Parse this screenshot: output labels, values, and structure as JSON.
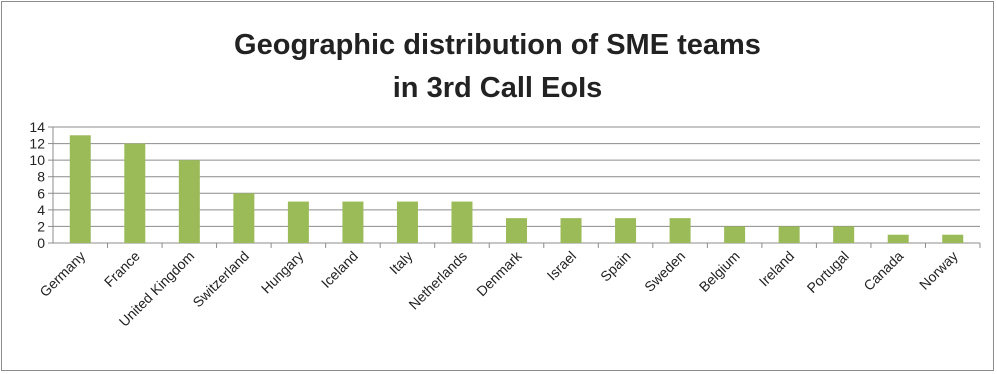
{
  "chart_data": {
    "type": "bar",
    "title": [
      "Geographic distribution of SME teams",
      "in 3rd Call EoIs"
    ],
    "xlabel": "",
    "ylabel": "",
    "categories": [
      "Germany",
      "France",
      "United Kingdom",
      "Switzerland",
      "Hungary",
      "Iceland",
      "Italy",
      "Netherlands",
      "Denmark",
      "Israel",
      "Spain",
      "Sweden",
      "Belgium",
      "Ireland",
      "Portugal",
      "Canada",
      "Norway"
    ],
    "values": [
      13,
      12,
      10,
      6,
      5,
      5,
      5,
      5,
      3,
      3,
      3,
      3,
      2,
      2,
      2,
      1,
      1
    ],
    "ylim": [
      0,
      14
    ],
    "yticks": [
      "0",
      "2",
      "4",
      "6",
      "8",
      "10",
      "12",
      "14"
    ],
    "grid": true,
    "legend": "none",
    "bar_color": "#9bbb59",
    "grid_color": "#8c8c8c"
  }
}
